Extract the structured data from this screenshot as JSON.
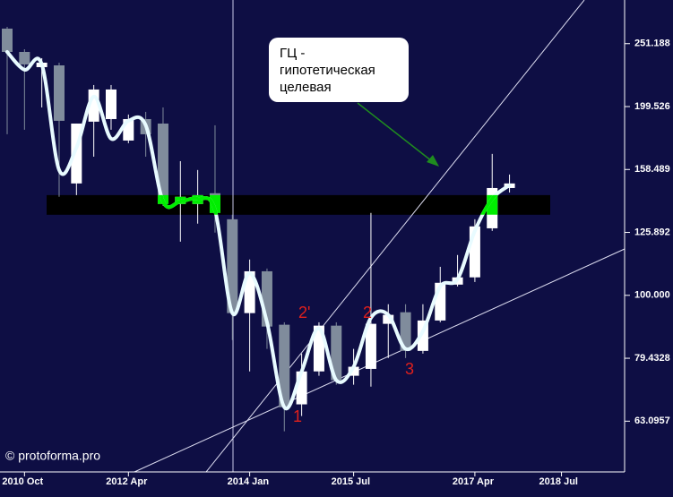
{
  "chart_data": {
    "type": "candlestick",
    "categories": [
      null,
      "2010 Oct",
      null,
      null,
      null,
      null,
      null,
      "2012 Apr",
      null,
      null,
      null,
      null,
      null,
      null,
      "2014 Jan",
      null,
      null,
      null,
      null,
      null,
      "2015 Jul",
      null,
      null,
      null,
      null,
      null,
      null,
      "2017 Apr",
      null,
      null,
      null,
      null,
      "2018 Jul"
    ],
    "open": [
      265.4,
      243.7,
      230.5,
      232.0,
      150.6,
      188.8,
      190.6,
      176.2,
      190.6,
      187.5,
      139.7,
      139.7,
      145.3,
      132.1,
      93.7,
      109.2,
      89.8,
      67.1,
      75.7,
      89.5,
      74.5,
      76.4,
      90.1,
      94.0,
      81.6,
      91.2,
      104.0,
      106.8,
      127.8,
      148.1,
      null,
      null,
      null
    ],
    "high": [
      267.1,
      246.1,
      238.2,
      234.3,
      187.5,
      215.9,
      215.9,
      193.8,
      195.7,
      198.9,
      163.4,
      158.2,
      186.3,
      134.3,
      114.0,
      110.3,
      90.6,
      80.8,
      90.6,
      90.6,
      82.2,
      135.2,
      96.8,
      96.8,
      96.8,
      111.0,
      115.9,
      132.1,
      167.8,
      155.6,
      null,
      null,
      null
    ],
    "low": [
      180.3,
      183.3,
      198.9,
      143.4,
      144.3,
      166.1,
      183.3,
      174.5,
      166.1,
      138.7,
      121.7,
      130.0,
      125.8,
      84.9,
      75.7,
      82.2,
      60.8,
      64.3,
      74.5,
      72.1,
      72.1,
      71.6,
      79.5,
      79.5,
      80.8,
      90.6,
      103.3,
      105.0,
      126.6,
      145.7,
      null,
      null,
      null
    ],
    "close": [
      243.7,
      232.8,
      234.3,
      189.4,
      187.5,
      212.4,
      212.4,
      190.6,
      180.3,
      139.7,
      143.4,
      144.3,
      135.2,
      93.7,
      109.2,
      89.2,
      66.4,
      75.7,
      89.5,
      73.3,
      77.0,
      90.1,
      93.1,
      81.6,
      91.2,
      104.7,
      106.8,
      128.7,
      148.1,
      150.6,
      null,
      null,
      null
    ],
    "line": [
      243.7,
      228.3,
      232.8,
      158.2,
      171.7,
      206.9,
      177.4,
      189.4,
      186.3,
      141.0,
      141.0,
      142.4,
      136.5,
      93.7,
      108.5,
      90.6,
      66.4,
      75.7,
      88.6,
      73.3,
      77.0,
      92.1,
      93.1,
      82.2,
      87.7,
      103.3,
      106.1,
      126.6,
      142.4,
      149.6,
      null,
      null,
      null
    ],
    "zone": [
      134.3,
      144.3
    ],
    "up_color": "#ffffff",
    "down_color": "#808c9c",
    "line_color": "#e8fbff",
    "zone_color": "#000000",
    "highlight_color": "#00ee00",
    "log_scale": true,
    "ylim": [
      52.4,
      294.7
    ],
    "yticks": [
      63.0957,
      79.4328,
      {
        "value": 100,
        "label": "100.000"
      },
      125.892,
      158.489,
      199.526,
      251.188
    ],
    "annotation": {
      "lines": [
        "ГЦ -",
        "гипотетическая",
        "целевая"
      ]
    },
    "wave_labels": [
      "1",
      "2'",
      "2",
      "3"
    ],
    "copyright": "© protoforma.pro"
  }
}
